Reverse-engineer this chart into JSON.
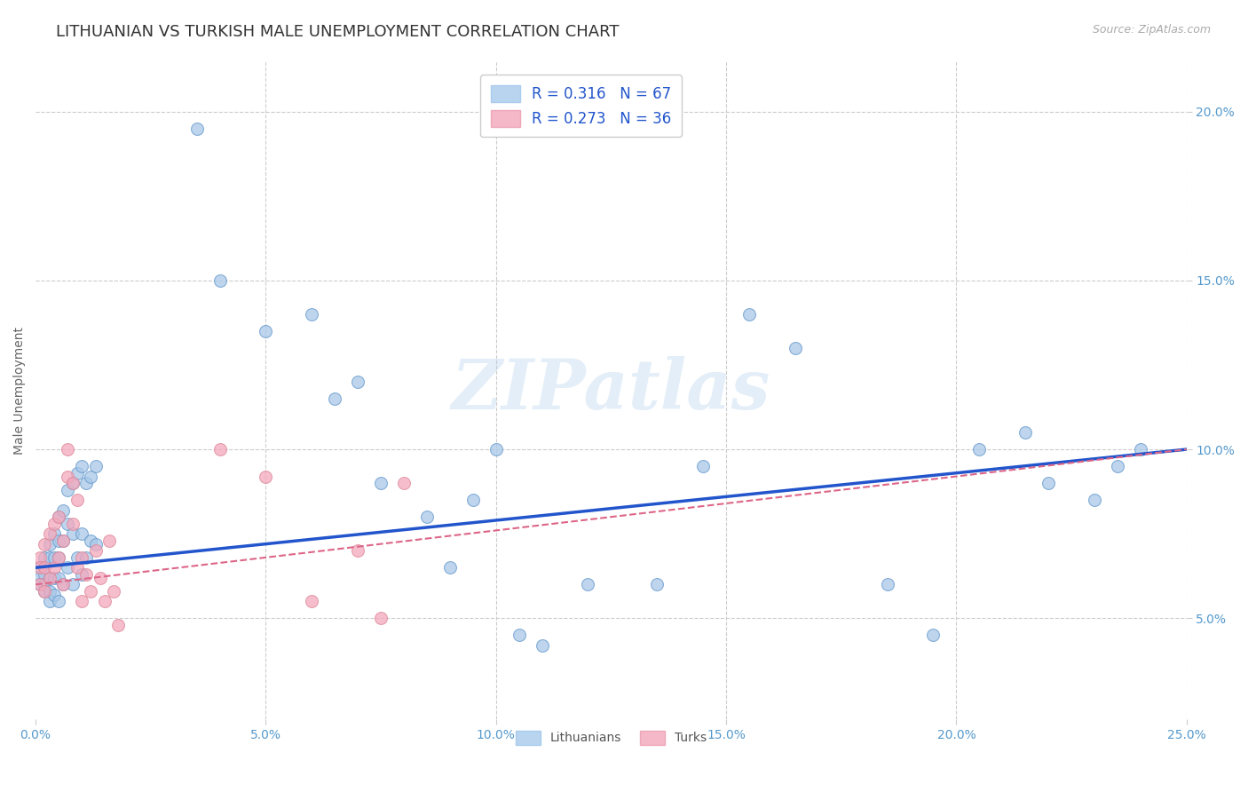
{
  "title": "LITHUANIAN VS TURKISH MALE UNEMPLOYMENT CORRELATION CHART",
  "source": "Source: ZipAtlas.com",
  "xlim": [
    0.0,
    0.25
  ],
  "ylim": [
    0.02,
    0.215
  ],
  "watermark": "ZIPatlas",
  "blue_color": "#a8c8e8",
  "pink_color": "#f4a8bc",
  "blue_line_color": "#2255cc",
  "pink_line_color": "#dd6688",
  "blue_marker_edge": "#6699cc",
  "pink_marker_edge": "#dd8899",
  "background_color": "#ffffff",
  "grid_color": "#cccccc",
  "title_color": "#333333",
  "axis_label_color": "#5599cc",
  "legend_r1": "R = 0.316   N = 67",
  "legend_r2": "R = 0.273   N = 36",
  "ylabel": "Male Unemployment",
  "legend_blue_fc": "#b8d4ee",
  "legend_pink_fc": "#f4b8c8",
  "lithuanians_x": [
    0.001,
    0.001,
    0.001,
    0.002,
    0.002,
    0.002,
    0.002,
    0.003,
    0.003,
    0.003,
    0.003,
    0.003,
    0.004,
    0.004,
    0.004,
    0.004,
    0.005,
    0.005,
    0.005,
    0.005,
    0.005,
    0.006,
    0.006,
    0.006,
    0.007,
    0.007,
    0.007,
    0.008,
    0.008,
    0.008,
    0.009,
    0.009,
    0.01,
    0.01,
    0.01,
    0.011,
    0.011,
    0.012,
    0.012,
    0.013,
    0.013,
    0.035,
    0.04,
    0.05,
    0.06,
    0.065,
    0.07,
    0.075,
    0.085,
    0.09,
    0.095,
    0.1,
    0.105,
    0.11,
    0.12,
    0.135,
    0.145,
    0.155,
    0.165,
    0.185,
    0.195,
    0.205,
    0.215,
    0.22,
    0.23,
    0.235,
    0.24
  ],
  "lithuanians_y": [
    0.065,
    0.062,
    0.06,
    0.068,
    0.063,
    0.06,
    0.058,
    0.072,
    0.068,
    0.062,
    0.058,
    0.055,
    0.075,
    0.068,
    0.062,
    0.057,
    0.08,
    0.073,
    0.068,
    0.062,
    0.055,
    0.082,
    0.073,
    0.06,
    0.088,
    0.078,
    0.065,
    0.09,
    0.075,
    0.06,
    0.093,
    0.068,
    0.095,
    0.075,
    0.063,
    0.09,
    0.068,
    0.092,
    0.073,
    0.095,
    0.072,
    0.195,
    0.15,
    0.135,
    0.14,
    0.115,
    0.12,
    0.09,
    0.08,
    0.065,
    0.085,
    0.1,
    0.045,
    0.042,
    0.06,
    0.06,
    0.095,
    0.14,
    0.13,
    0.06,
    0.045,
    0.1,
    0.105,
    0.09,
    0.085,
    0.095,
    0.1
  ],
  "turks_x": [
    0.001,
    0.001,
    0.001,
    0.002,
    0.002,
    0.002,
    0.003,
    0.003,
    0.004,
    0.004,
    0.005,
    0.005,
    0.006,
    0.006,
    0.007,
    0.007,
    0.008,
    0.008,
    0.009,
    0.009,
    0.01,
    0.01,
    0.011,
    0.012,
    0.013,
    0.014,
    0.015,
    0.016,
    0.017,
    0.018,
    0.04,
    0.05,
    0.06,
    0.07,
    0.075,
    0.08
  ],
  "turks_y": [
    0.068,
    0.065,
    0.06,
    0.072,
    0.065,
    0.058,
    0.075,
    0.062,
    0.078,
    0.065,
    0.08,
    0.068,
    0.073,
    0.06,
    0.1,
    0.092,
    0.09,
    0.078,
    0.085,
    0.065,
    0.068,
    0.055,
    0.063,
    0.058,
    0.07,
    0.062,
    0.055,
    0.073,
    0.058,
    0.048,
    0.1,
    0.092,
    0.055,
    0.07,
    0.05,
    0.09
  ]
}
